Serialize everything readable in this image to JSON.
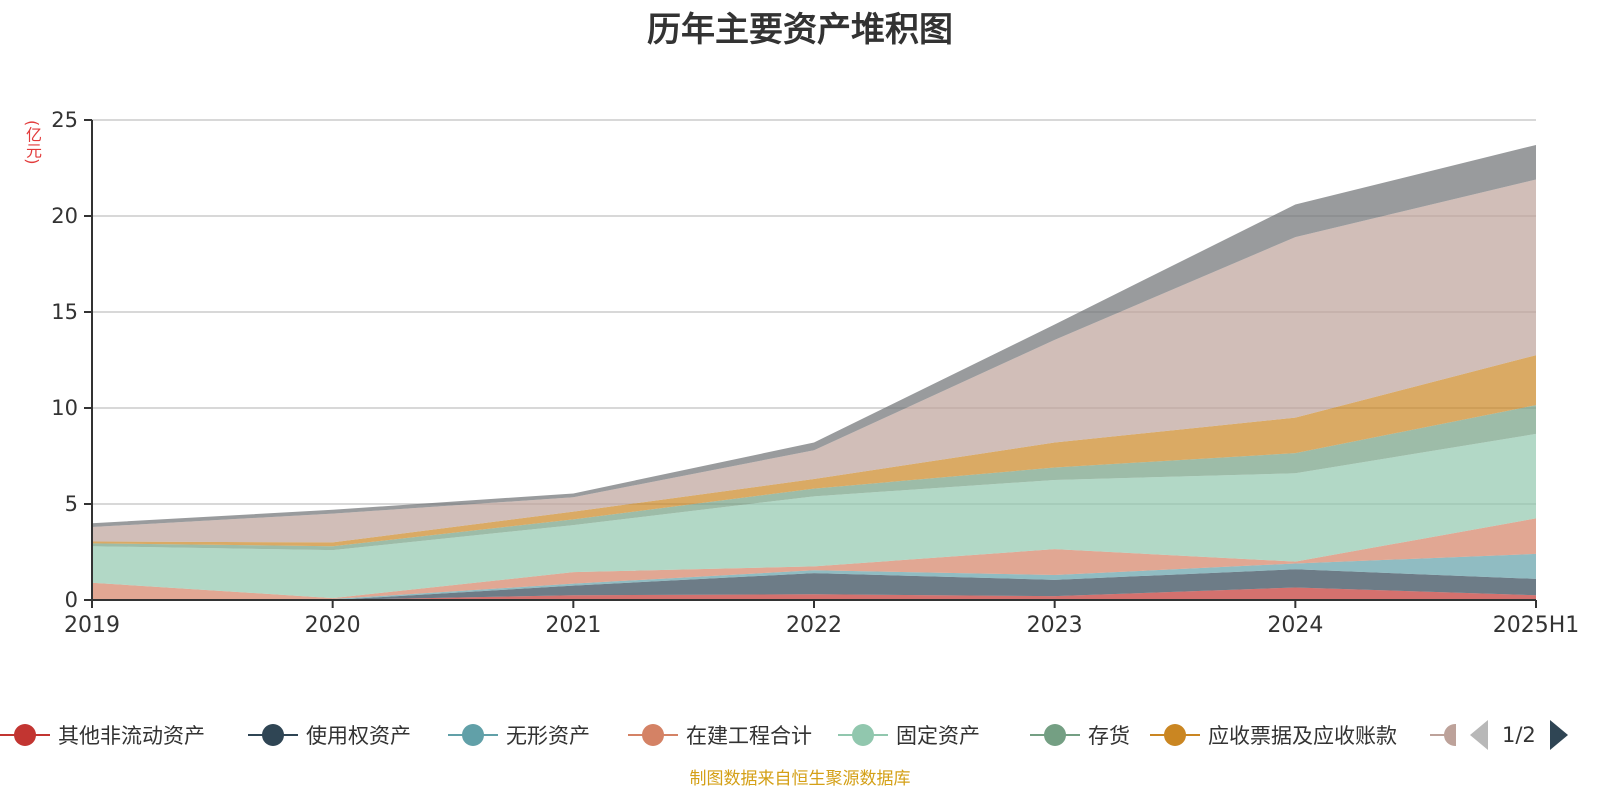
{
  "chart_data": {
    "type": "area",
    "stacked": true,
    "title": "历年主要资产堆积图",
    "ylabel": "(亿元)",
    "xlabel": "",
    "categories": [
      "2019",
      "2020",
      "2021",
      "2022",
      "2023",
      "2024",
      "2025H1"
    ],
    "ylim": [
      0,
      25
    ],
    "yticks": [
      0,
      5,
      10,
      15,
      20,
      25
    ],
    "grid": true,
    "legend_position": "bottom",
    "series": [
      {
        "name": "其他非流动资产",
        "color": "#c23531",
        "values": [
          0.0,
          0.0,
          0.25,
          0.3,
          0.2,
          0.65,
          0.25
        ]
      },
      {
        "name": "使用权资产",
        "color": "#2f4554",
        "values": [
          0.0,
          0.0,
          0.5,
          1.1,
          0.85,
          0.95,
          0.85
        ]
      },
      {
        "name": "无形资产",
        "color": "#61a0a8",
        "values": [
          0.05,
          0.05,
          0.1,
          0.15,
          0.25,
          0.3,
          1.3
        ]
      },
      {
        "name": "在建工程合计",
        "color": "#d48265",
        "values": [
          0.85,
          0.05,
          0.6,
          0.2,
          1.35,
          0.1,
          1.85
        ]
      },
      {
        "name": "固定资产",
        "color": "#91c7ae",
        "values": [
          1.9,
          2.5,
          2.45,
          3.65,
          3.6,
          4.6,
          4.4
        ]
      },
      {
        "name": "存货",
        "color": "#749f83",
        "values": [
          0.15,
          0.2,
          0.3,
          0.4,
          0.65,
          1.05,
          1.5
        ]
      },
      {
        "name": "应收票据及应收账款",
        "color": "#ca8622",
        "values": [
          0.1,
          0.2,
          0.4,
          0.5,
          1.3,
          1.85,
          2.6
        ]
      },
      {
        "name": "",
        "color": "#bda29a",
        "values": [
          0.75,
          1.5,
          0.75,
          1.5,
          5.35,
          9.4,
          9.15
        ]
      },
      {
        "name": "",
        "color": "#6e7074",
        "values": [
          0.2,
          0.2,
          0.2,
          0.4,
          0.8,
          1.7,
          1.8
        ]
      }
    ]
  },
  "legend": {
    "items": [
      {
        "label": "其他非流动资产",
        "color": "#c23531"
      },
      {
        "label": "使用权资产",
        "color": "#2f4554"
      },
      {
        "label": "无形资产",
        "color": "#61a0a8"
      },
      {
        "label": "在建工程合计",
        "color": "#d48265"
      },
      {
        "label": "固定资产",
        "color": "#91c7ae"
      },
      {
        "label": "存货",
        "color": "#749f83"
      },
      {
        "label": "应收票据及应收账款",
        "color": "#ca8622"
      },
      {
        "label": "",
        "color": "#bda29a"
      }
    ],
    "page": "1/2"
  },
  "source_note": "制图数据来自恒生聚源数据库"
}
